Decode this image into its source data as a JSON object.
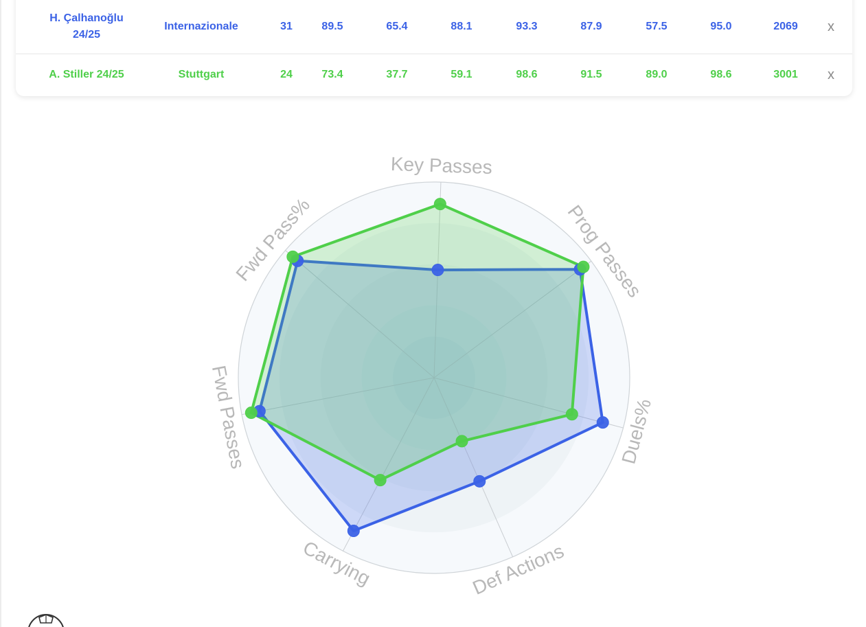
{
  "table": {
    "rows": [
      {
        "name_line1": "H. Çalhanoğlu",
        "name_line2": "24/25",
        "team": "Internazionale",
        "values": [
          "31",
          "89.5",
          "65.4",
          "88.1",
          "93.3",
          "87.9",
          "57.5",
          "95.0",
          "2069"
        ],
        "close": "x",
        "color": "#3b62e6"
      },
      {
        "name": "A. Stiller 24/25",
        "team": "Stuttgart",
        "values": [
          "24",
          "73.4",
          "37.7",
          "59.1",
          "98.6",
          "91.5",
          "89.0",
          "98.6",
          "3001"
        ],
        "close": "x",
        "color": "#4fcf4a"
      }
    ]
  },
  "chart_data": {
    "type": "radar",
    "axes": [
      "Key Passes",
      "Prog Passes",
      "Duels%",
      "Def Actions",
      "Carrying",
      "Fwd Passes",
      "Fwd Pass%"
    ],
    "range": [
      0,
      100
    ],
    "series": [
      {
        "color": "#3b62e6",
        "values": [
          55.1,
          92.9,
          89.2,
          57.8,
          88.4,
          90.8,
          91.8
        ]
      },
      {
        "color": "#4fcf4a",
        "values": [
          88.8,
          95.0,
          72.9,
          35.4,
          59.1,
          95.1,
          95.0
        ]
      }
    ]
  },
  "logo": {
    "icon": "soccer-ball-icon"
  }
}
